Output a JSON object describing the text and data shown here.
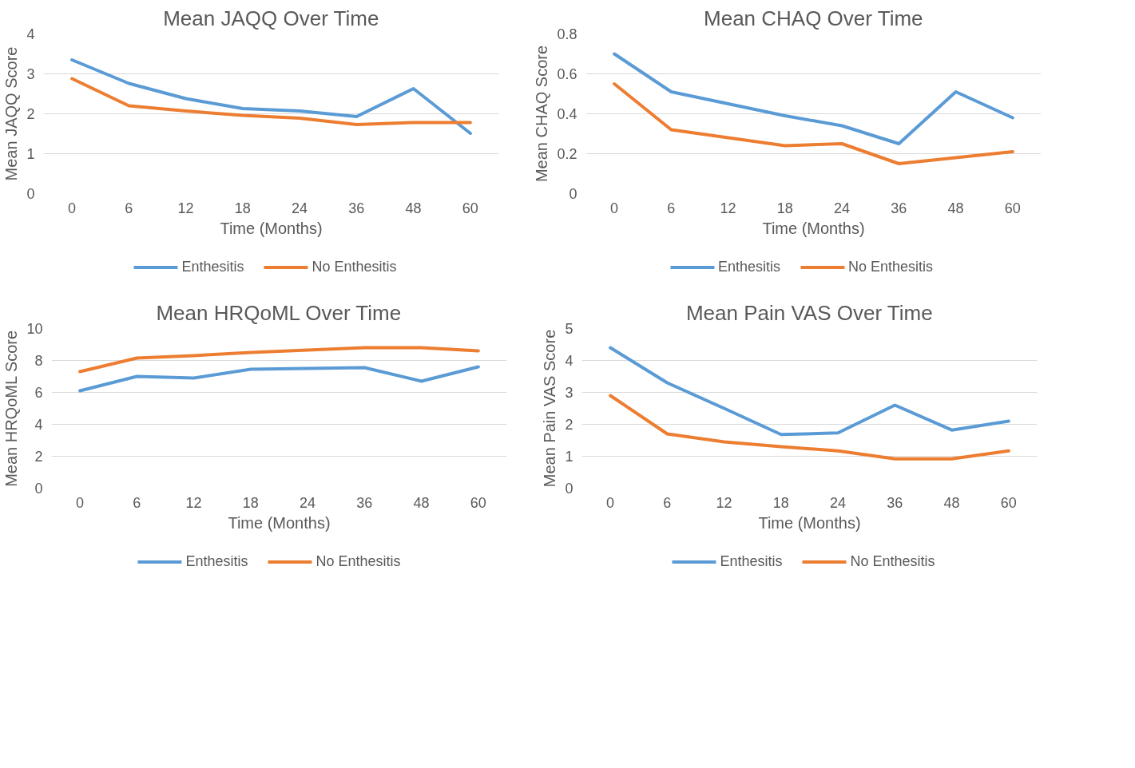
{
  "chart_data": [
    {
      "type": "line",
      "title": "Mean JAQQ Over Time",
      "xlabel": "Time (Months)",
      "ylabel": "Mean JAQQ Score",
      "categories": [
        "0",
        "6",
        "12",
        "18",
        "24",
        "36",
        "48",
        "60"
      ],
      "ylim": [
        0,
        4
      ],
      "yticks": [
        0,
        1,
        2,
        3,
        4
      ],
      "grid": "y",
      "legend": "bottom",
      "series": [
        {
          "name": "Enthesitis",
          "color": "#5b9bd5",
          "values": [
            3.35,
            2.76,
            2.38,
            2.13,
            2.07,
            1.93,
            2.63,
            1.51
          ]
        },
        {
          "name": "No Enthesitis",
          "color": "#ed7d31",
          "values": [
            2.88,
            2.2,
            2.07,
            1.96,
            1.89,
            1.73,
            1.78,
            1.78
          ]
        }
      ]
    },
    {
      "type": "line",
      "title": "Mean CHAQ Over Time",
      "xlabel": "Time (Months)",
      "ylabel": "Mean CHAQ Score",
      "categories": [
        "0",
        "6",
        "12",
        "18",
        "24",
        "36",
        "48",
        "60"
      ],
      "ylim": [
        0,
        0.8
      ],
      "yticks": [
        0,
        {
          "value": 0.2,
          "label": "0.2"
        },
        {
          "value": 0.4,
          "label": "0.4"
        },
        {
          "value": 0.6,
          "label": "0.6"
        },
        {
          "value": 0.8,
          "label": "0.8"
        }
      ],
      "grid": "y",
      "legend": "bottom",
      "series": [
        {
          "name": "Enthesitis",
          "color": "#5b9bd5",
          "values": [
            0.7,
            0.51,
            0.45,
            0.39,
            0.34,
            0.25,
            0.51,
            0.38
          ]
        },
        {
          "name": "No Enthesitis",
          "color": "#ed7d31",
          "values": [
            0.55,
            0.32,
            0.28,
            0.24,
            0.25,
            0.15,
            0.18,
            0.21
          ]
        }
      ]
    },
    {
      "type": "line",
      "title": "Mean HRQoML Over Time",
      "xlabel": "Time (Months)",
      "ylabel": "Mean HRQoML Score",
      "categories": [
        "0",
        "6",
        "12",
        "18",
        "24",
        "36",
        "48",
        "60"
      ],
      "ylim": [
        0,
        10
      ],
      "yticks": [
        0,
        2,
        4,
        6,
        8,
        10
      ],
      "grid": "y",
      "legend": "bottom",
      "series": [
        {
          "name": "Enthesitis",
          "color": "#5b9bd5",
          "values": [
            6.1,
            7.0,
            6.9,
            7.45,
            7.5,
            7.55,
            6.7,
            7.6
          ]
        },
        {
          "name": "No Enthesitis",
          "color": "#ed7d31",
          "values": [
            7.3,
            8.15,
            8.3,
            8.5,
            8.65,
            8.8,
            8.8,
            8.6
          ]
        }
      ]
    },
    {
      "type": "line",
      "title": "Mean Pain VAS Over Time",
      "xlabel": "Time (Months)",
      "ylabel": "Mean Pain VAS Score",
      "categories": [
        "0",
        "6",
        "12",
        "18",
        "24",
        "36",
        "48",
        "60"
      ],
      "ylim": [
        0,
        5
      ],
      "yticks": [
        0,
        1,
        2,
        3,
        4,
        5
      ],
      "grid": "y",
      "legend": "bottom",
      "series": [
        {
          "name": "Enthesitis",
          "color": "#5b9bd5",
          "values": [
            4.4,
            3.3,
            2.5,
            1.68,
            1.73,
            2.6,
            1.82,
            2.1
          ]
        },
        {
          "name": "No Enthesitis",
          "color": "#ed7d31",
          "values": [
            2.9,
            1.7,
            1.45,
            1.3,
            1.17,
            0.92,
            0.92,
            1.17
          ]
        }
      ]
    }
  ]
}
